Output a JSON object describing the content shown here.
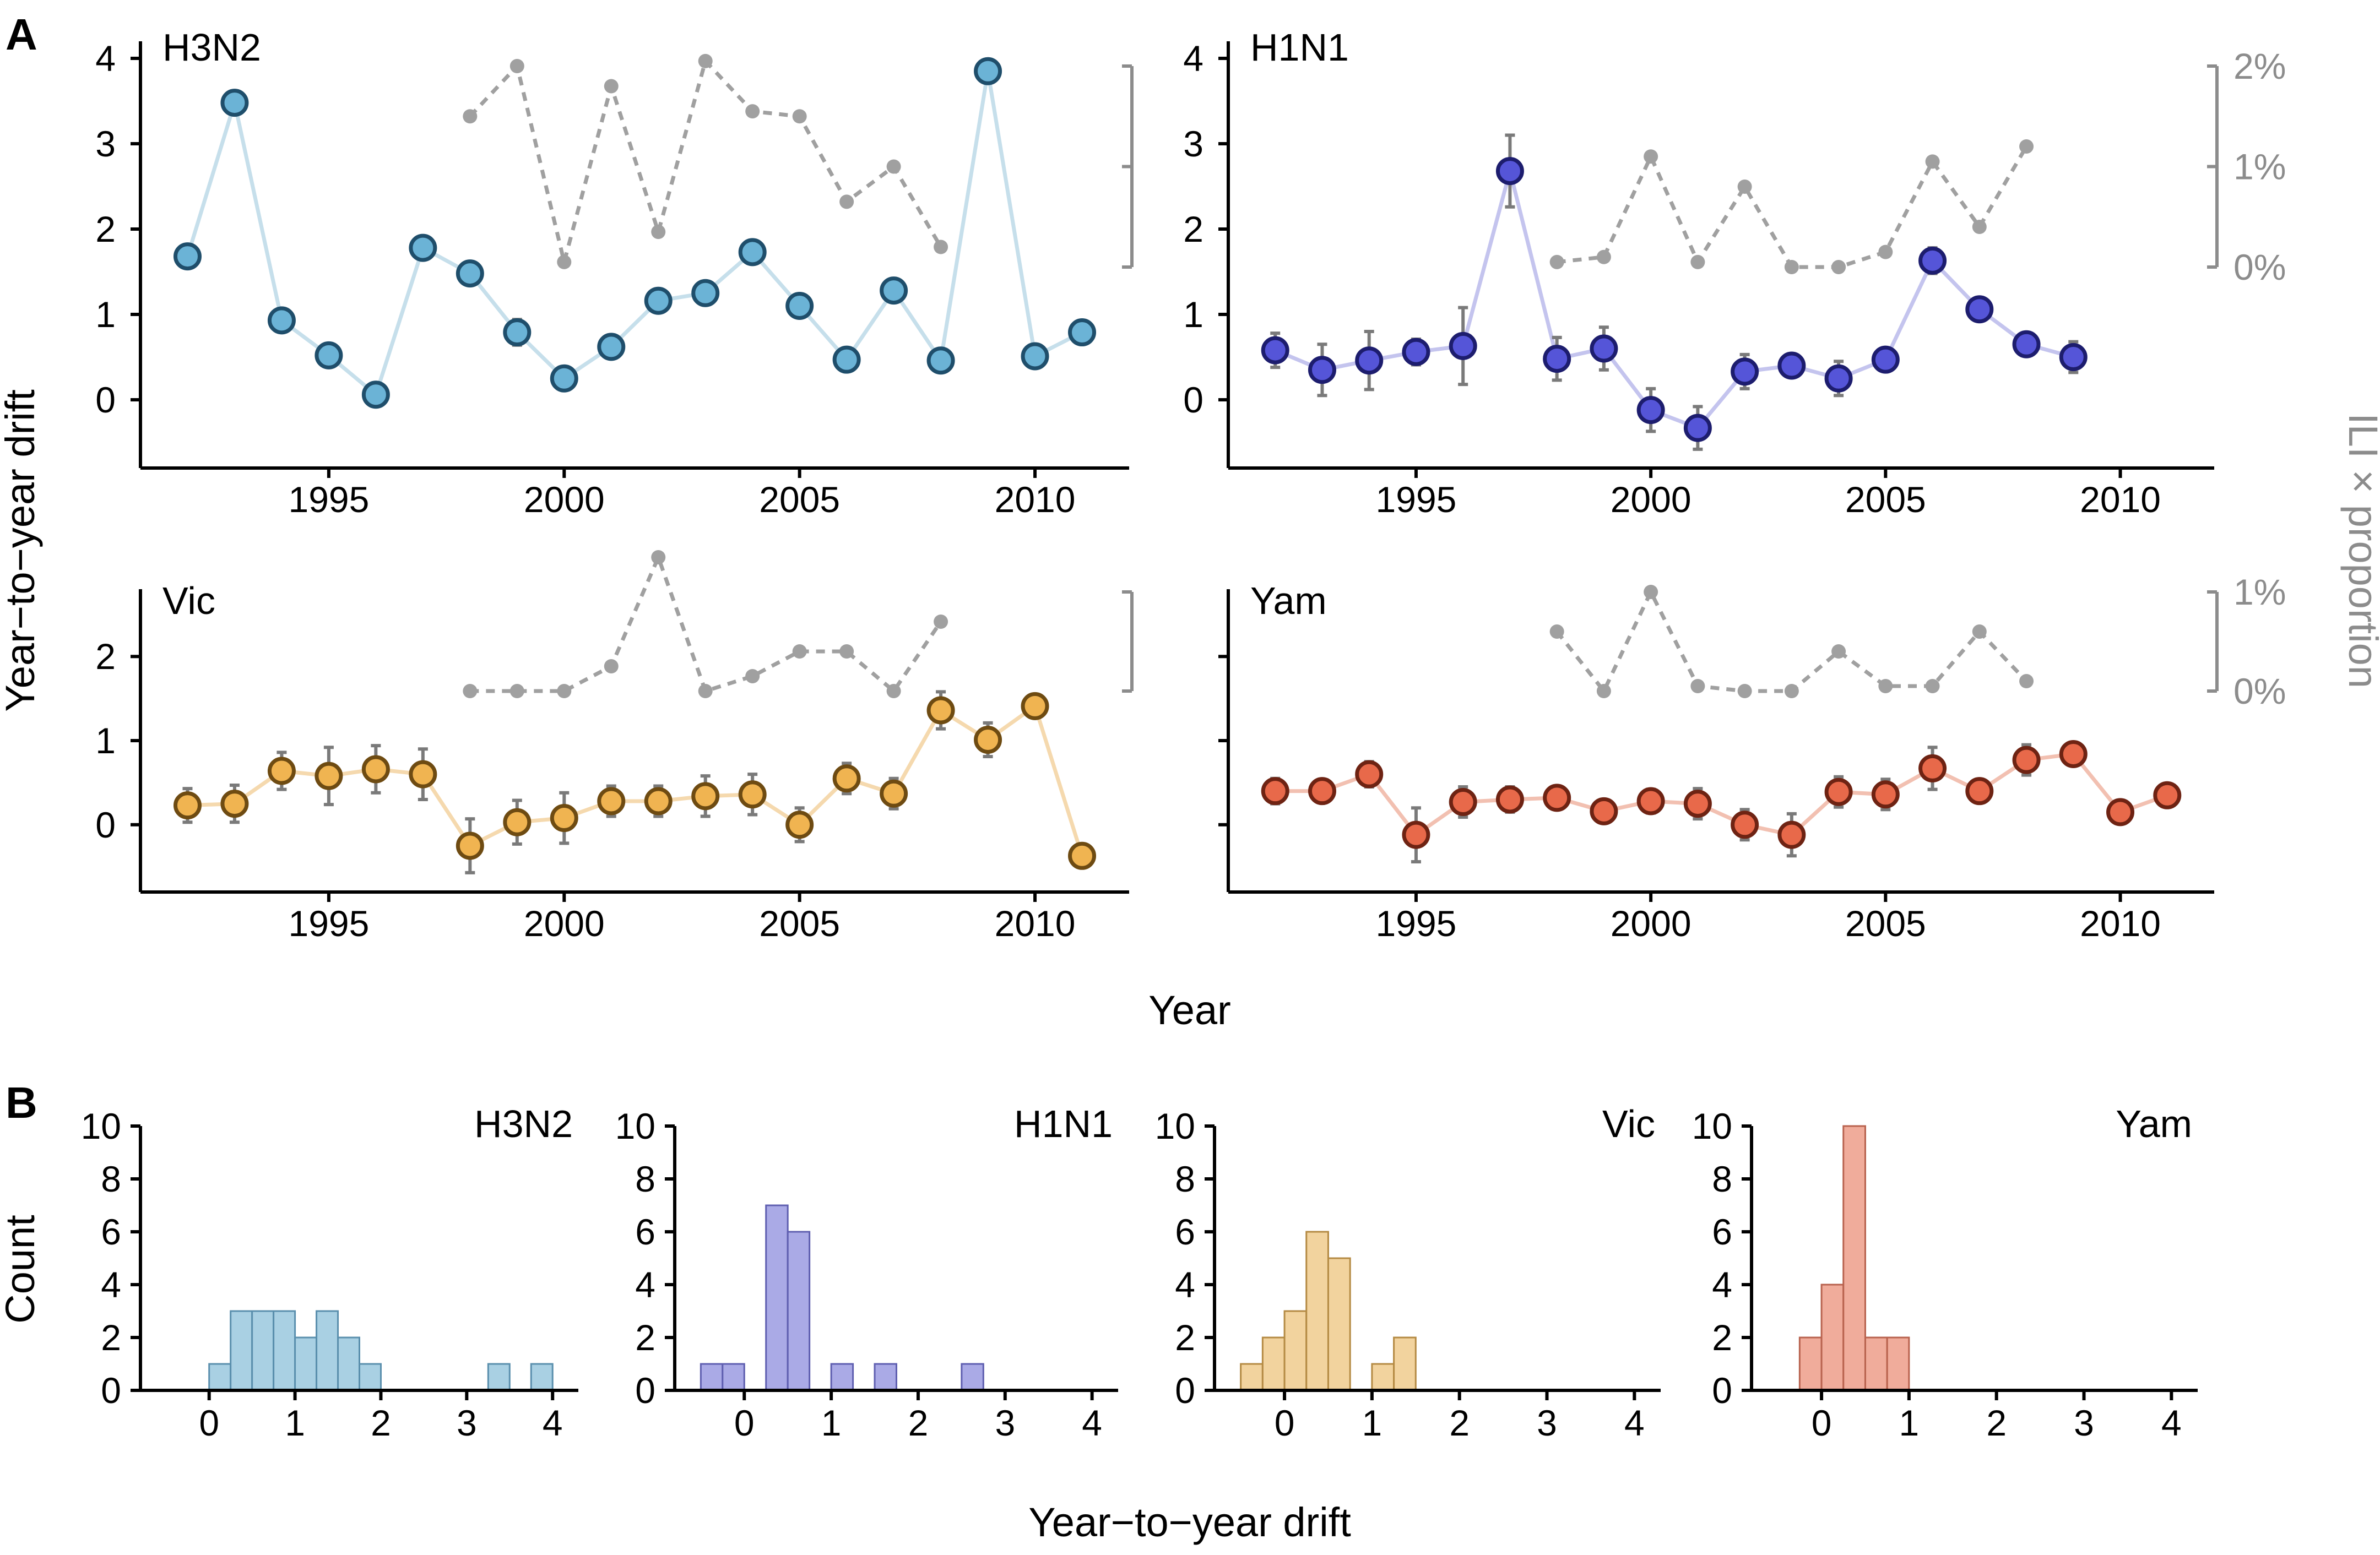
{
  "panel_labels": {
    "a": "A",
    "b": "B"
  },
  "axis_labels": {
    "a_y": "Year−to−year drift",
    "a_x": "Year",
    "a_y_right": "ILI × proportion",
    "b_y": "Count",
    "b_x": "Year−to−year drift"
  },
  "colors": {
    "H3N2": {
      "fill": "#6bb3d6",
      "stroke": "#1f4e6b",
      "line": "#c6dfeb",
      "bar": "#a9d0e3",
      "barstroke": "#5a8fad"
    },
    "H1N1": {
      "fill": "#5555d8",
      "stroke": "#1d1d6e",
      "line": "#c4c4ee",
      "bar": "#aaaae6",
      "barstroke": "#5f5fb0"
    },
    "Vic": {
      "fill": "#f0b451",
      "stroke": "#6e4b12",
      "line": "#f5d9ae",
      "bar": "#f2d39e",
      "barstroke": "#b48a43"
    },
    "Yam": {
      "fill": "#e8694a",
      "stroke": "#6e2313",
      "line": "#f2c0b1",
      "bar": "#f0ac9b",
      "barstroke": "#b8624e"
    },
    "ili": "#a0a0a0",
    "errbar": "#7a7a7a"
  },
  "chart_data": [
    {
      "type": "line",
      "name": "H3N2",
      "title": "H3N2",
      "xlabel": "Year",
      "ylabel": "Year−to−year drift",
      "xlim": [
        1991,
        2012
      ],
      "ylim": [
        -0.8,
        4.2
      ],
      "x_ticks": [
        "1995",
        "2000",
        "2005",
        "2010"
      ],
      "y_ticks": [
        "0",
        "1",
        "2",
        "3",
        "4"
      ],
      "drift": {
        "x": [
          1992,
          1993,
          1994,
          1995,
          1996,
          1997,
          1998,
          1999,
          2000,
          2001,
          2002,
          2003,
          2004,
          2005,
          2006,
          2007,
          2008,
          2009,
          2010,
          2011
        ],
        "y": [
          1.68,
          3.48,
          0.93,
          0.52,
          0.06,
          1.78,
          1.48,
          0.79,
          0.25,
          0.62,
          1.16,
          1.25,
          1.73,
          1.1,
          0.47,
          1.28,
          0.46,
          3.85,
          0.51,
          0.79
        ],
        "err": [
          0,
          0,
          0,
          0,
          0,
          0.08,
          0.1,
          0.15,
          0.08,
          0.13,
          0.12,
          0,
          0,
          0,
          0,
          0.12,
          0.12,
          0.1,
          0,
          0.12
        ]
      },
      "ili": {
        "x": [
          1998,
          1999,
          2000,
          2001,
          2002,
          2003,
          2004,
          2005,
          2006,
          2007,
          2008
        ],
        "y": [
          1.5,
          2.0,
          0.05,
          1.8,
          0.35,
          2.05,
          1.55,
          1.5,
          0.65,
          1.0,
          0.2
        ]
      },
      "right_ticks": [
        "2%",
        "1%",
        "0%"
      ]
    },
    {
      "type": "line",
      "name": "H1N1",
      "title": "H1N1",
      "xlabel": "Year",
      "ylabel": "Year−to−year drift",
      "xlim": [
        1991,
        2012
      ],
      "ylim": [
        -0.8,
        4.2
      ],
      "x_ticks": [
        "1995",
        "2000",
        "2005",
        "2010"
      ],
      "y_ticks": [
        "0",
        "1",
        "2",
        "3",
        "4"
      ],
      "drift": {
        "x": [
          1992,
          1993,
          1994,
          1995,
          1996,
          1997,
          1998,
          1999,
          2000,
          2001,
          2002,
          2003,
          2004,
          2005,
          2006,
          2007,
          2008,
          2009
        ],
        "y": [
          0.58,
          0.35,
          0.46,
          0.56,
          0.63,
          2.68,
          0.48,
          0.6,
          -0.12,
          -0.33,
          0.33,
          0.4,
          0.25,
          0.47,
          1.63,
          1.06,
          0.65,
          0.5
        ],
        "err": [
          0.2,
          0.3,
          0.34,
          0.15,
          0.45,
          0.42,
          0.25,
          0.25,
          0.25,
          0.25,
          0.2,
          0.1,
          0.2,
          0.05,
          0.15,
          0.1,
          0.12,
          0.18
        ]
      },
      "ili": {
        "x": [
          1998,
          1999,
          2000,
          2001,
          2002,
          2003,
          2004,
          2005,
          2006,
          2007,
          2008
        ],
        "y": [
          0.05,
          0.1,
          1.1,
          0.05,
          0.8,
          0.0,
          0.0,
          0.15,
          1.05,
          0.4,
          1.2
        ]
      },
      "right_ticks": [
        "2%",
        "1%",
        "0%"
      ]
    },
    {
      "type": "line",
      "name": "Vic",
      "title": "Vic",
      "xlabel": "Year",
      "ylabel": "Year−to−year drift",
      "xlim": [
        1991,
        2012
      ],
      "ylim": [
        -0.8,
        2.8
      ],
      "x_ticks": [
        "1995",
        "2000",
        "2005",
        "2010"
      ],
      "y_ticks": [
        "0",
        "1",
        "2"
      ],
      "drift": {
        "x": [
          1992,
          1993,
          1994,
          1995,
          1996,
          1997,
          1998,
          1999,
          2000,
          2001,
          2002,
          2003,
          2004,
          2005,
          2006,
          2007,
          2008,
          2009,
          2010,
          2011
        ],
        "y": [
          0.23,
          0.25,
          0.64,
          0.58,
          0.66,
          0.6,
          -0.25,
          0.03,
          0.08,
          0.28,
          0.28,
          0.34,
          0.36,
          0.0,
          0.55,
          0.37,
          1.36,
          1.01,
          1.41,
          -0.37
        ],
        "err": [
          0.2,
          0.22,
          0.22,
          0.34,
          0.28,
          0.3,
          0.32,
          0.26,
          0.3,
          0.18,
          0.18,
          0.24,
          0.24,
          0.2,
          0.18,
          0.18,
          0.22,
          0.2,
          0.1,
          0.06
        ]
      },
      "ili": {
        "x": [
          1998,
          1999,
          2000,
          2001,
          2002,
          2003,
          2004,
          2005,
          2006,
          2007,
          2008
        ],
        "y": [
          0.0,
          0.0,
          0.0,
          0.25,
          1.35,
          0.0,
          0.15,
          0.4,
          0.4,
          0.0,
          0.7
        ]
      },
      "right_ticks": [
        "1%",
        "0%"
      ]
    },
    {
      "type": "line",
      "name": "Yam",
      "title": "Yam",
      "xlabel": "Year",
      "ylabel": "Year−to−year drift",
      "xlim": [
        1991,
        2012
      ],
      "ylim": [
        -0.8,
        2.8
      ],
      "x_ticks": [
        "1995",
        "2000",
        "2005",
        "2010"
      ],
      "y_ticks": [],
      "drift": {
        "x": [
          1992,
          1993,
          1994,
          1995,
          1996,
          1997,
          1998,
          1999,
          2000,
          2001,
          2002,
          2003,
          2004,
          2005,
          2006,
          2007,
          2008,
          2009,
          2010,
          2011
        ],
        "y": [
          0.4,
          0.4,
          0.6,
          -0.12,
          0.27,
          0.3,
          0.32,
          0.16,
          0.28,
          0.25,
          0.0,
          -0.12,
          0.39,
          0.36,
          0.67,
          0.4,
          0.77,
          0.84,
          0.15,
          0.35
        ],
        "err": [
          0.15,
          0.08,
          0.15,
          0.32,
          0.18,
          0.15,
          0.12,
          0.1,
          0.14,
          0.18,
          0.18,
          0.25,
          0.18,
          0.18,
          0.25,
          0.12,
          0.18,
          0.05,
          0.05,
          0.1
        ]
      },
      "ili": {
        "x": [
          1998,
          1999,
          2000,
          2001,
          2002,
          2003,
          2004,
          2005,
          2006,
          2007,
          2008
        ],
        "y": [
          0.6,
          0.0,
          1.0,
          0.05,
          0.0,
          0.0,
          0.4,
          0.05,
          0.05,
          0.6,
          0.1
        ]
      },
      "right_ticks": [
        "1%",
        "0%"
      ]
    },
    {
      "type": "bar",
      "name": "H3N2",
      "title": "H3N2",
      "xlabel": "Year−to−year drift",
      "ylabel": "Count",
      "bin_width": 0.25,
      "bin_starts": [
        0.0,
        0.25,
        0.5,
        0.75,
        1.0,
        1.25,
        1.5,
        1.75,
        3.25,
        3.75
      ],
      "counts": [
        1,
        3,
        3,
        3,
        2,
        3,
        2,
        1,
        1,
        1
      ],
      "xlim": [
        -0.8,
        4.3
      ],
      "ylim": [
        0,
        10
      ],
      "x_ticks": [
        "0",
        "1",
        "2",
        "3",
        "4"
      ],
      "y_ticks": [
        "0",
        "2",
        "4",
        "6",
        "8",
        "10"
      ]
    },
    {
      "type": "bar",
      "name": "H1N1",
      "title": "H1N1",
      "xlabel": "Year−to−year drift",
      "ylabel": "Count",
      "bin_width": 0.25,
      "bin_starts": [
        -0.5,
        -0.25,
        0.25,
        0.5,
        1.0,
        1.5,
        2.5
      ],
      "counts": [
        1,
        1,
        7,
        6,
        1,
        1,
        1
      ],
      "xlim": [
        -0.8,
        4.3
      ],
      "ylim": [
        0,
        10
      ],
      "x_ticks": [
        "0",
        "1",
        "2",
        "3",
        "4"
      ],
      "y_ticks": [
        "0",
        "2",
        "4",
        "6",
        "8",
        "10"
      ]
    },
    {
      "type": "bar",
      "name": "Vic",
      "title": "Vic",
      "xlabel": "Year−to−year drift",
      "ylabel": "Count",
      "bin_width": 0.25,
      "bin_starts": [
        -0.5,
        -0.25,
        0.0,
        0.25,
        0.5,
        1.0,
        1.25
      ],
      "counts": [
        1,
        2,
        3,
        6,
        5,
        1,
        2
      ],
      "xlim": [
        -0.8,
        4.3
      ],
      "ylim": [
        0,
        10
      ],
      "x_ticks": [
        "0",
        "1",
        "2",
        "3",
        "4"
      ],
      "y_ticks": [
        "0",
        "2",
        "4",
        "6",
        "8",
        "10"
      ]
    },
    {
      "type": "bar",
      "name": "Yam",
      "title": "Yam",
      "xlabel": "Year−to−year drift",
      "ylabel": "Count",
      "bin_width": 0.25,
      "bin_starts": [
        -0.25,
        0.0,
        0.25,
        0.5,
        0.75
      ],
      "counts": [
        2,
        4,
        10,
        2,
        2
      ],
      "xlim": [
        -0.8,
        4.3
      ],
      "ylim": [
        0,
        10
      ],
      "x_ticks": [
        "0",
        "1",
        "2",
        "3",
        "4"
      ],
      "y_ticks": [
        "0",
        "2",
        "4",
        "6",
        "8",
        "10"
      ]
    }
  ]
}
